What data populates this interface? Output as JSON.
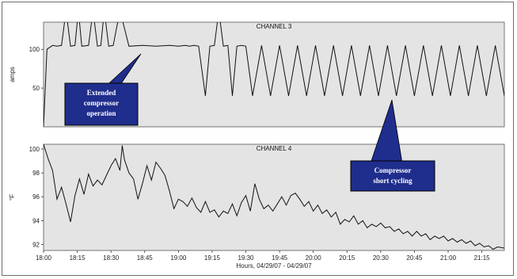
{
  "chart_data": [
    {
      "type": "line",
      "title": "CHANNEL 3",
      "ylabel": "amps",
      "xlabel": "",
      "yticks": [
        50,
        100
      ],
      "ylim": [
        0,
        135
      ],
      "xlim": [
        "18:00",
        "21:25"
      ],
      "grid": false,
      "series": [
        {
          "x": [
            0,
            1.5,
            4,
            6,
            8,
            10,
            12,
            14,
            15.5,
            17,
            20,
            22,
            24,
            25.5,
            27,
            29,
            31,
            34,
            38,
            44,
            50,
            56,
            60,
            63,
            65,
            67,
            69,
            72,
            74,
            76,
            78,
            80,
            82,
            84,
            86,
            88,
            90,
            93,
            97,
            101,
            105,
            109,
            113,
            117,
            121,
            125,
            129,
            133,
            137,
            141,
            145,
            149,
            153,
            157,
            161,
            165,
            169,
            173,
            177,
            181,
            185,
            189,
            193,
            197,
            201,
            205
          ],
          "y": [
            0,
            100,
            105,
            104,
            105,
            150,
            104,
            105,
            150,
            104,
            105,
            150,
            104,
            105,
            150,
            104,
            105,
            150,
            104,
            105,
            104,
            105,
            104,
            105,
            104,
            105,
            104,
            40,
            104,
            105,
            150,
            104,
            105,
            40,
            104,
            105,
            104,
            40,
            105,
            40,
            105,
            40,
            105,
            40,
            105,
            40,
            105,
            40,
            105,
            40,
            105,
            40,
            105,
            40,
            105,
            40,
            105,
            40,
            105,
            40,
            105,
            40,
            105,
            40,
            105,
            40
          ]
        }
      ]
    },
    {
      "type": "line",
      "title": "CHANNEL 4",
      "ylabel": "°F",
      "xlabel": "Hours, 04/29/07 - 04/29/07",
      "yticks": [
        92,
        94,
        96,
        98,
        100
      ],
      "ylim": [
        91.5,
        100.4
      ],
      "xlim": [
        "18:00",
        "21:25"
      ],
      "xticks": [
        "18:00",
        "18:15",
        "18:30",
        "18:45",
        "19:00",
        "19:15",
        "19:30",
        "19:45",
        "20:00",
        "20:15",
        "20:30",
        "20:45",
        "21:00",
        "21:15"
      ],
      "grid": false,
      "series": [
        {
          "x": [
            0,
            2,
            4,
            6,
            8,
            10,
            12,
            14,
            16,
            18,
            20,
            22,
            24,
            26,
            28,
            30,
            32,
            34,
            35,
            36,
            38,
            40,
            42,
            44,
            46,
            48,
            50,
            52,
            54,
            56,
            58,
            60,
            62,
            64,
            66,
            68,
            70,
            72,
            74,
            76,
            78,
            80,
            82,
            84,
            86,
            88,
            90,
            92,
            94,
            96,
            98,
            100,
            102,
            104,
            106,
            108,
            110,
            112,
            114,
            116,
            118,
            120,
            122,
            124,
            126,
            128,
            130,
            132,
            134,
            136,
            138,
            140,
            142,
            144,
            146,
            148,
            150,
            152,
            154,
            156,
            158,
            160,
            162,
            164,
            166,
            168,
            170,
            172,
            174,
            176,
            178,
            180,
            182,
            184,
            186,
            188,
            190,
            192,
            194,
            196,
            198,
            200,
            202,
            205
          ],
          "y": [
            100.4,
            99.2,
            98.2,
            95.8,
            96.8,
            95.4,
            93.9,
            96.1,
            97.5,
            96.2,
            97.9,
            96.9,
            97.4,
            97.0,
            97.8,
            98.6,
            99.2,
            98.2,
            100.3,
            99.1,
            98.0,
            97.5,
            95.8,
            97.1,
            98.6,
            97.4,
            98.9,
            98.4,
            97.8,
            96.5,
            95.0,
            95.8,
            95.6,
            95.2,
            95.9,
            95.1,
            94.7,
            95.6,
            94.7,
            94.9,
            94.3,
            94.8,
            94.6,
            95.4,
            94.4,
            95.5,
            96.1,
            94.8,
            97.1,
            95.8,
            95.0,
            95.3,
            94.8,
            95.4,
            96.0,
            95.3,
            96.1,
            96.3,
            95.8,
            95.2,
            95.6,
            94.8,
            95.3,
            94.6,
            94.9,
            94.3,
            94.7,
            93.7,
            94.1,
            93.9,
            94.4,
            93.7,
            94.0,
            93.4,
            93.7,
            93.5,
            93.8,
            93.4,
            93.5,
            93.1,
            93.3,
            92.9,
            93.1,
            92.7,
            93.1,
            92.7,
            92.9,
            92.4,
            92.7,
            92.5,
            92.7,
            92.3,
            92.5,
            92.2,
            92.4,
            92.1,
            92.3,
            91.9,
            92.1,
            91.8,
            91.9,
            91.6,
            91.8,
            91.7
          ]
        }
      ]
    }
  ],
  "annotations": [
    {
      "lines": [
        "Extended",
        "compressor",
        "operation"
      ]
    },
    {
      "lines": [
        "Compressor",
        "short cycling"
      ]
    }
  ],
  "colors": {
    "plot_bg": "#e4e4e4",
    "callout": "#1f2d8c",
    "line": "#111111"
  }
}
